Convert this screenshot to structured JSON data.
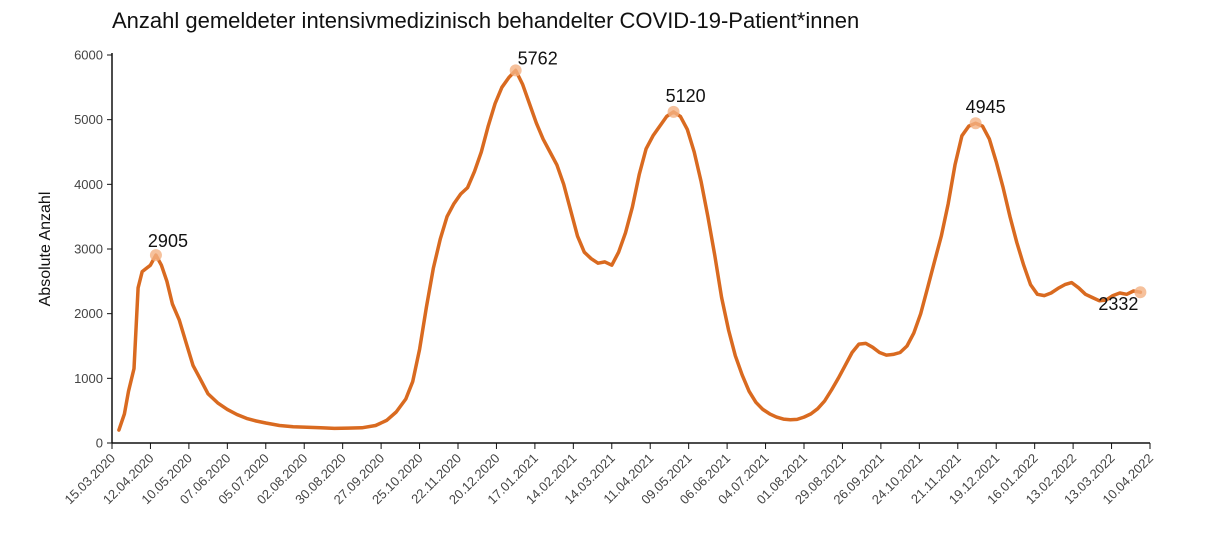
{
  "chart_data": {
    "type": "line",
    "title": "Anzahl gemeldeter intensivmedizinisch behandelter COVID-19-Patient*innen",
    "ylabel": "Absolute Anzahl",
    "xlabel": "",
    "ylim": [
      0,
      6000
    ],
    "yticks": [
      0,
      1000,
      2000,
      3000,
      4000,
      5000,
      6000
    ],
    "xlim": [
      "2020-03-15",
      "2022-04-10"
    ],
    "xtick_labels": [
      "15.03.2020",
      "12.04.2020",
      "10.05.2020",
      "07.06.2020",
      "05.07.2020",
      "02.08.2020",
      "30.08.2020",
      "27.09.2020",
      "25.10.2020",
      "22.11.2020",
      "20.12.2020",
      "17.01.2021",
      "14.02.2021",
      "14.03.2021",
      "11.04.2021",
      "09.05.2021",
      "06.06.2021",
      "04.07.2021",
      "01.08.2021",
      "29.08.2021",
      "26.09.2021",
      "24.10.2021",
      "21.11.2021",
      "19.12.2021",
      "16.01.2022",
      "13.02.2022",
      "13.03.2022",
      "10.04.2022"
    ],
    "series": [
      {
        "color": "#d96a20",
        "points": [
          [
            "2020-03-20",
            200
          ],
          [
            "2020-03-24",
            450
          ],
          [
            "2020-03-27",
            800
          ],
          [
            "2020-03-31",
            1150
          ],
          [
            "2020-04-03",
            2400
          ],
          [
            "2020-04-06",
            2650
          ],
          [
            "2020-04-09",
            2700
          ],
          [
            "2020-04-12",
            2750
          ],
          [
            "2020-04-16",
            2905
          ],
          [
            "2020-04-20",
            2750
          ],
          [
            "2020-04-24",
            2500
          ],
          [
            "2020-04-28",
            2150
          ],
          [
            "2020-05-03",
            1900
          ],
          [
            "2020-05-08",
            1550
          ],
          [
            "2020-05-13",
            1200
          ],
          [
            "2020-05-18",
            1000
          ],
          [
            "2020-05-24",
            760
          ],
          [
            "2020-05-31",
            620
          ],
          [
            "2020-06-07",
            520
          ],
          [
            "2020-06-14",
            440
          ],
          [
            "2020-06-21",
            380
          ],
          [
            "2020-06-28",
            340
          ],
          [
            "2020-07-05",
            310
          ],
          [
            "2020-07-15",
            270
          ],
          [
            "2020-07-25",
            250
          ],
          [
            "2020-08-04",
            245
          ],
          [
            "2020-08-14",
            235
          ],
          [
            "2020-08-24",
            225
          ],
          [
            "2020-09-03",
            230
          ],
          [
            "2020-09-13",
            235
          ],
          [
            "2020-09-23",
            270
          ],
          [
            "2020-10-01",
            350
          ],
          [
            "2020-10-08",
            480
          ],
          [
            "2020-10-15",
            680
          ],
          [
            "2020-10-20",
            950
          ],
          [
            "2020-10-25",
            1450
          ],
          [
            "2020-10-30",
            2100
          ],
          [
            "2020-11-04",
            2700
          ],
          [
            "2020-11-09",
            3150
          ],
          [
            "2020-11-14",
            3500
          ],
          [
            "2020-11-19",
            3700
          ],
          [
            "2020-11-24",
            3850
          ],
          [
            "2020-11-29",
            3950
          ],
          [
            "2020-12-04",
            4200
          ],
          [
            "2020-12-09",
            4500
          ],
          [
            "2020-12-14",
            4900
          ],
          [
            "2020-12-19",
            5250
          ],
          [
            "2020-12-24",
            5500
          ],
          [
            "2020-12-29",
            5650
          ],
          [
            "2021-01-03",
            5762
          ],
          [
            "2021-01-08",
            5550
          ],
          [
            "2021-01-13",
            5250
          ],
          [
            "2021-01-18",
            4950
          ],
          [
            "2021-01-23",
            4700
          ],
          [
            "2021-01-28",
            4500
          ],
          [
            "2021-02-02",
            4300
          ],
          [
            "2021-02-07",
            4000
          ],
          [
            "2021-02-12",
            3600
          ],
          [
            "2021-02-17",
            3200
          ],
          [
            "2021-02-22",
            2950
          ],
          [
            "2021-02-27",
            2850
          ],
          [
            "2021-03-04",
            2780
          ],
          [
            "2021-03-09",
            2800
          ],
          [
            "2021-03-14",
            2750
          ],
          [
            "2021-03-19",
            2950
          ],
          [
            "2021-03-24",
            3250
          ],
          [
            "2021-03-29",
            3650
          ],
          [
            "2021-04-03",
            4150
          ],
          [
            "2021-04-08",
            4550
          ],
          [
            "2021-04-13",
            4750
          ],
          [
            "2021-04-18",
            4900
          ],
          [
            "2021-04-23",
            5050
          ],
          [
            "2021-04-28",
            5120
          ],
          [
            "2021-05-03",
            5050
          ],
          [
            "2021-05-08",
            4850
          ],
          [
            "2021-05-13",
            4500
          ],
          [
            "2021-05-18",
            4050
          ],
          [
            "2021-05-23",
            3500
          ],
          [
            "2021-05-28",
            2900
          ],
          [
            "2021-06-02",
            2250
          ],
          [
            "2021-06-07",
            1750
          ],
          [
            "2021-06-12",
            1350
          ],
          [
            "2021-06-17",
            1050
          ],
          [
            "2021-06-22",
            800
          ],
          [
            "2021-06-27",
            630
          ],
          [
            "2021-07-02",
            520
          ],
          [
            "2021-07-07",
            450
          ],
          [
            "2021-07-12",
            400
          ],
          [
            "2021-07-17",
            370
          ],
          [
            "2021-07-22",
            360
          ],
          [
            "2021-07-27",
            365
          ],
          [
            "2021-08-01",
            400
          ],
          [
            "2021-08-06",
            450
          ],
          [
            "2021-08-11",
            530
          ],
          [
            "2021-08-16",
            650
          ],
          [
            "2021-08-21",
            820
          ],
          [
            "2021-08-26",
            1000
          ],
          [
            "2021-08-31",
            1200
          ],
          [
            "2021-09-05",
            1400
          ],
          [
            "2021-09-10",
            1530
          ],
          [
            "2021-09-15",
            1540
          ],
          [
            "2021-09-20",
            1480
          ],
          [
            "2021-09-25",
            1400
          ],
          [
            "2021-09-30",
            1360
          ],
          [
            "2021-10-05",
            1370
          ],
          [
            "2021-10-10",
            1400
          ],
          [
            "2021-10-15",
            1500
          ],
          [
            "2021-10-20",
            1700
          ],
          [
            "2021-10-25",
            2000
          ],
          [
            "2021-10-30",
            2400
          ],
          [
            "2021-11-04",
            2800
          ],
          [
            "2021-11-09",
            3200
          ],
          [
            "2021-11-14",
            3700
          ],
          [
            "2021-11-19",
            4300
          ],
          [
            "2021-11-24",
            4750
          ],
          [
            "2021-11-29",
            4900
          ],
          [
            "2021-12-04",
            4945
          ],
          [
            "2021-12-09",
            4900
          ],
          [
            "2021-12-14",
            4700
          ],
          [
            "2021-12-19",
            4350
          ],
          [
            "2021-12-24",
            3950
          ],
          [
            "2021-12-29",
            3500
          ],
          [
            "2022-01-03",
            3100
          ],
          [
            "2022-01-08",
            2750
          ],
          [
            "2022-01-13",
            2450
          ],
          [
            "2022-01-18",
            2300
          ],
          [
            "2022-01-23",
            2280
          ],
          [
            "2022-01-28",
            2320
          ],
          [
            "2022-02-02",
            2390
          ],
          [
            "2022-02-07",
            2450
          ],
          [
            "2022-02-12",
            2480
          ],
          [
            "2022-02-17",
            2400
          ],
          [
            "2022-02-22",
            2300
          ],
          [
            "2022-02-27",
            2250
          ],
          [
            "2022-03-04",
            2200
          ],
          [
            "2022-03-09",
            2210
          ],
          [
            "2022-03-14",
            2280
          ],
          [
            "2022-03-19",
            2320
          ],
          [
            "2022-03-24",
            2300
          ],
          [
            "2022-03-29",
            2350
          ],
          [
            "2022-04-03",
            2332
          ]
        ]
      }
    ],
    "annotations": [
      {
        "date": "2020-04-16",
        "value": 2905,
        "label": "2905"
      },
      {
        "date": "2021-01-03",
        "value": 5762,
        "label": "5762"
      },
      {
        "date": "2021-04-28",
        "value": 5120,
        "label": "5120"
      },
      {
        "date": "2021-12-04",
        "value": 4945,
        "label": "4945"
      },
      {
        "date": "2022-04-03",
        "value": 2332,
        "label": "2332"
      }
    ],
    "grid": false,
    "legend": "none"
  }
}
